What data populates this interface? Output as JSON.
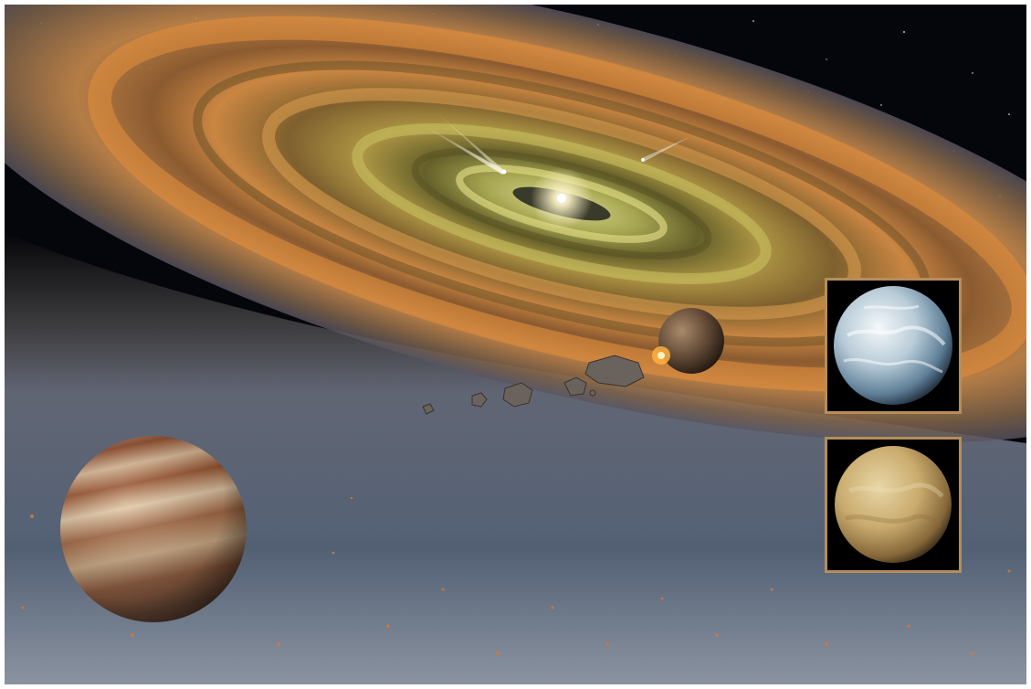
{
  "image": {
    "subject": "protoplanetary-disk-scene",
    "palette": {
      "space": "#05060b",
      "disk_gold": "#d9a24a",
      "disk_orange": "#e58a3a",
      "disk_inner": "#c9c36a",
      "dust_blue": "#6b7d95",
      "inset_border": "#b58e5a",
      "gas_giant_band_light": "#d9b896",
      "gas_giant_band_dark": "#8e4a2a",
      "icy_planet": "#cfe0ea",
      "tan_planet": "#c9ab6e"
    },
    "insets": [
      {
        "name": "icy-planet-inset"
      },
      {
        "name": "tan-planet-inset"
      }
    ]
  }
}
